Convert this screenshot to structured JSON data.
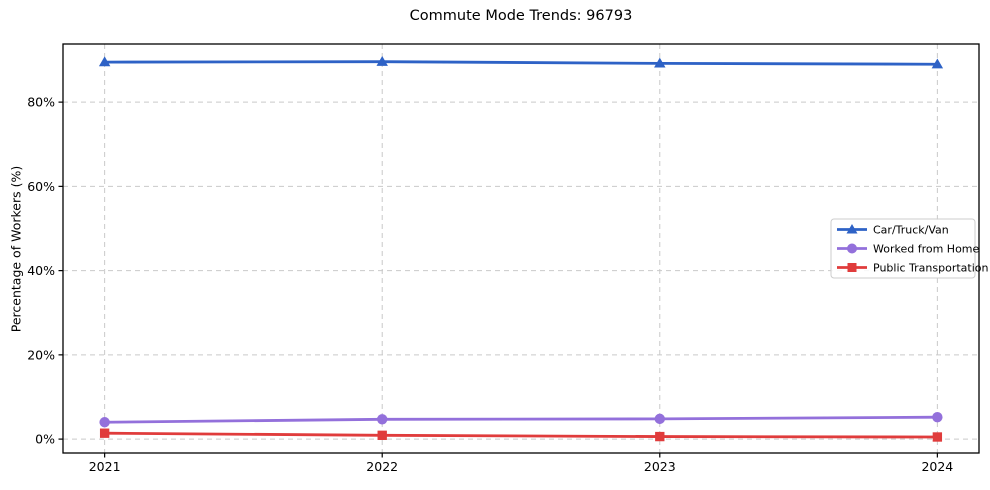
{
  "figure": {
    "title": "Commute Mode Trends: 96793",
    "ylabel": "Percentage of Workers (%)"
  },
  "chart_data": {
    "type": "line",
    "title": "Commute Mode Trends: 96793",
    "xlabel": "",
    "ylabel": "Percentage of Workers (%)",
    "x": [
      2021,
      2022,
      2023,
      2024
    ],
    "x_tick_labels": [
      "2021",
      "2022",
      "2023",
      "2024"
    ],
    "y_ticks": [
      0,
      20,
      40,
      60,
      80
    ],
    "y_tick_labels": [
      "0%",
      "20%",
      "40%",
      "60%",
      "80%"
    ],
    "xlim": [
      2020.85,
      2024.15
    ],
    "ylim": [
      -3.3,
      93.8
    ],
    "grid": true,
    "grid_style": "dashed",
    "legend_position": "center-right",
    "series": [
      {
        "name": "Car/Truck/Van",
        "color": "#2e62c6",
        "marker": "triangle-up",
        "values": [
          89.5,
          89.6,
          89.2,
          89.0
        ]
      },
      {
        "name": "Worked from Home",
        "color": "#9370db",
        "marker": "circle",
        "values": [
          4.0,
          4.7,
          4.8,
          5.2
        ]
      },
      {
        "name": "Public Transportation",
        "color": "#e03c3c",
        "marker": "square",
        "values": [
          1.4,
          0.9,
          0.6,
          0.5
        ]
      }
    ],
    "colors": {
      "grid": "#c9c9c9",
      "spine": "#000000",
      "text": "#000000",
      "legend_border": "#cccccc",
      "legend_background": "#ffffff",
      "background": "#ffffff"
    }
  }
}
